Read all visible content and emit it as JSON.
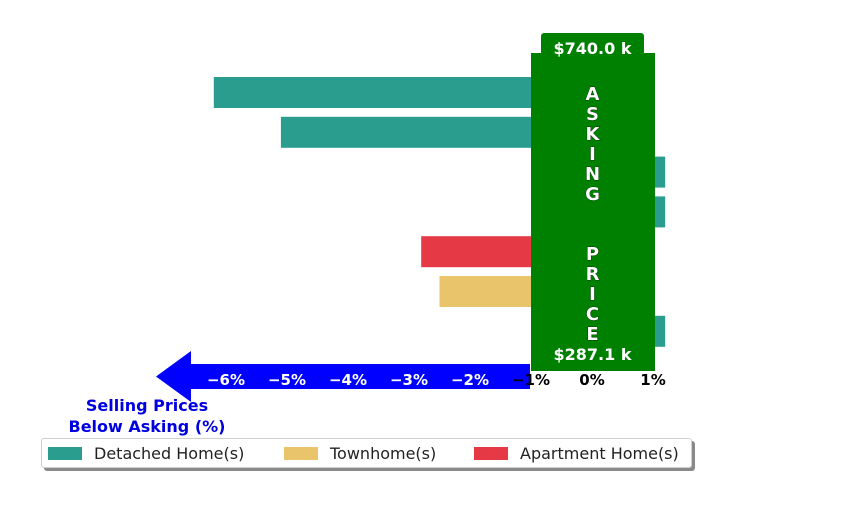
{
  "chart_data": {
    "type": "bar",
    "orientation": "horizontal",
    "xlim": [
      -7.3,
      1.2
    ],
    "x_ticks": [
      {
        "value": -6,
        "label": "−6%"
      },
      {
        "value": -5,
        "label": "−5%"
      },
      {
        "value": -4,
        "label": "−4%"
      },
      {
        "value": -3,
        "label": "−3%"
      },
      {
        "value": -2,
        "label": "−2%"
      },
      {
        "value": -1,
        "label": "−1%"
      },
      {
        "value": 0,
        "label": "0%"
      },
      {
        "value": 1,
        "label": "1%"
      }
    ],
    "xlabel": "Selling Prices\nBelow Asking (%)",
    "bars": [
      {
        "series": "Detached Home(s)",
        "value": -6.2
      },
      {
        "series": "Detached Home(s)",
        "value": -5.1
      },
      {
        "series": "Detached Home(s)",
        "value": 1.2
      },
      {
        "series": "Detached Home(s)",
        "value": 1.2
      },
      {
        "series": "Apartment Home(s)",
        "value": -2.8
      },
      {
        "series": "Townhome(s)",
        "value": -2.5
      },
      {
        "series": "Detached Home(s)",
        "value": 1.2
      }
    ],
    "series": [
      {
        "name": "Detached Home(s)",
        "color": "#2a9d8f"
      },
      {
        "name": "Townhome(s)",
        "color": "#e9c46a"
      },
      {
        "name": "Apartment Home(s)",
        "color": "#e63946"
      }
    ],
    "annotations": {
      "asking_price_label": "ASKING  PRICE",
      "top_price": "$740.0 k",
      "bottom_price": "$287.1 k"
    },
    "legend_position": "bottom-left",
    "colors": {
      "asking_box": "#008000",
      "arrow": "#0000ff",
      "xlabel": "#0000e0"
    }
  }
}
